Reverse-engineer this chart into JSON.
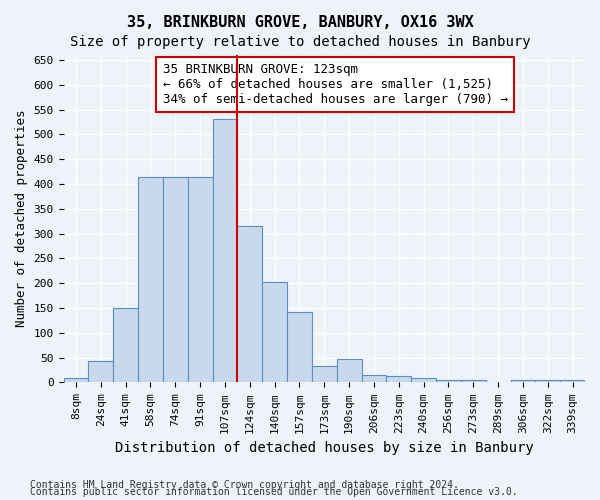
{
  "title": "35, BRINKBURN GROVE, BANBURY, OX16 3WX",
  "subtitle": "Size of property relative to detached houses in Banbury",
  "xlabel": "Distribution of detached houses by size in Banbury",
  "ylabel": "Number of detached properties",
  "categories": [
    "8sqm",
    "24sqm",
    "41sqm",
    "58sqm",
    "74sqm",
    "91sqm",
    "107sqm",
    "124sqm",
    "140sqm",
    "157sqm",
    "173sqm",
    "190sqm",
    "206sqm",
    "223sqm",
    "240sqm",
    "256sqm",
    "273sqm",
    "289sqm",
    "306sqm",
    "322sqm",
    "339sqm"
  ],
  "values": [
    8,
    44,
    150,
    415,
    415,
    415,
    530,
    315,
    203,
    142,
    33,
    48,
    14,
    13,
    8,
    4,
    4,
    1,
    5,
    5,
    5
  ],
  "bar_color": "#c8d9ec",
  "bar_edge_color": "#5b8ec4",
  "vline_color": "#cc0000",
  "annotation_text": "35 BRINKBURN GROVE: 123sqm\n← 66% of detached houses are smaller (1,525)\n34% of semi-detached houses are larger (790) →",
  "annotation_box_color": "#ffffff",
  "annotation_box_edgecolor": "#cc0000",
  "ylim": [
    0,
    660
  ],
  "yticks": [
    0,
    50,
    100,
    150,
    200,
    250,
    300,
    350,
    400,
    450,
    500,
    550,
    600,
    650
  ],
  "title_fontsize": 11,
  "subtitle_fontsize": 10,
  "xlabel_fontsize": 10,
  "ylabel_fontsize": 9,
  "tick_fontsize": 8,
  "annotation_fontsize": 9,
  "footer_line1": "Contains HM Land Registry data © Crown copyright and database right 2024.",
  "footer_line2": "Contains public sector information licensed under the Open Government Licence v3.0.",
  "background_color": "#eef2f9",
  "plot_bg_color": "#eef2f9",
  "grid_color": "#ffffff"
}
